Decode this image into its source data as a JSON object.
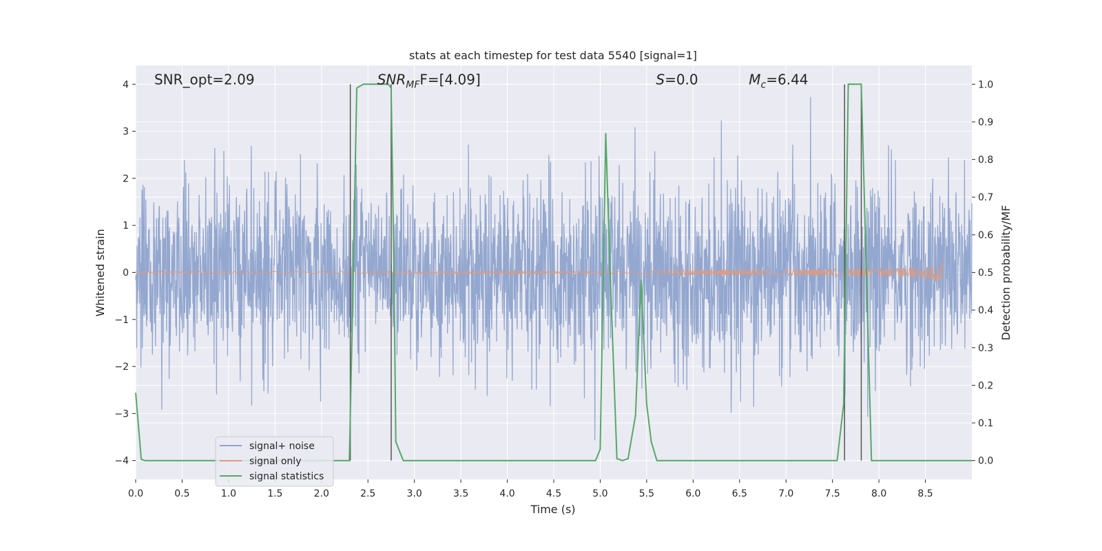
{
  "chart_data": {
    "type": "line",
    "title": "stats at each timestep for test data 5540 [signal=1]",
    "xlabel": "Time (s)",
    "ylabel_left": "Whitened strain",
    "ylabel_right": "Detection probability/MF",
    "xlim": [
      0.0,
      9.0
    ],
    "ylim_left": [
      -4.4,
      4.4
    ],
    "ylim_right": [
      -0.05,
      1.05
    ],
    "x_ticks": [
      "0.0",
      "0.5",
      "1.0",
      "1.5",
      "2.0",
      "2.5",
      "3.0",
      "3.5",
      "4.0",
      "4.5",
      "5.0",
      "5.5",
      "6.0",
      "6.5",
      "7.0",
      "7.5",
      "8.0",
      "8.5"
    ],
    "y_ticks_left": [
      "4",
      "3",
      "2",
      "1",
      "0",
      "−1",
      "−2",
      "−3",
      "−4"
    ],
    "y_ticks_right": [
      "1.0",
      "0.9",
      "0.8",
      "0.7",
      "0.6",
      "0.5",
      "0.4",
      "0.3",
      "0.2",
      "0.1",
      "0.0"
    ],
    "grid": true,
    "legend_position": "lower-left",
    "annotations": [
      {
        "text": "SNR_opt=2.09",
        "x": 0.2,
        "y": 4.1
      },
      {
        "text": "SNR",
        "sub": "MF",
        "suffix": "F=[4.09]",
        "x": 2.6,
        "y": 4.1
      },
      {
        "text": "S",
        "suffix": "=0.0",
        "x": 5.6,
        "y": 4.1
      },
      {
        "text": "M",
        "sub": "c",
        "suffix": "=6.44",
        "x": 6.6,
        "y": 4.1
      }
    ],
    "series": [
      {
        "name": "signal+ noise",
        "axis": "left",
        "color": "#8ea3cc",
        "style": "dense-noise",
        "envelope_sigma": 0.95,
        "range": [
          0.0,
          9.0
        ]
      },
      {
        "name": "signal only",
        "axis": "left",
        "color": "#dd9a7f",
        "style": "chirp",
        "t_peak": 8.68,
        "peak_amplitude": 0.25
      },
      {
        "name": "signal statistics",
        "axis": "right",
        "color": "#55a868",
        "x": [
          0.0,
          0.06,
          0.1,
          2.3,
          2.33,
          2.38,
          2.45,
          2.72,
          2.75,
          2.78,
          2.8,
          2.88,
          4.95,
          5.0,
          5.06,
          5.1,
          5.18,
          5.24,
          5.3,
          5.38,
          5.44,
          5.5,
          5.55,
          5.61,
          7.55,
          7.62,
          7.67,
          7.81,
          7.92,
          9.0
        ],
        "y": [
          0.18,
          0.003,
          0.0,
          0.0,
          0.35,
          0.99,
          1.0,
          1.0,
          0.99,
          0.5,
          0.05,
          0.0,
          0.0,
          0.03,
          0.87,
          0.55,
          0.005,
          0.0,
          0.005,
          0.12,
          0.48,
          0.15,
          0.05,
          0.0,
          0.0,
          0.15,
          1.0,
          1.0,
          0.0,
          0.0
        ]
      }
    ],
    "vertical_lines": [
      2.31,
      2.75,
      7.63,
      7.81
    ]
  }
}
